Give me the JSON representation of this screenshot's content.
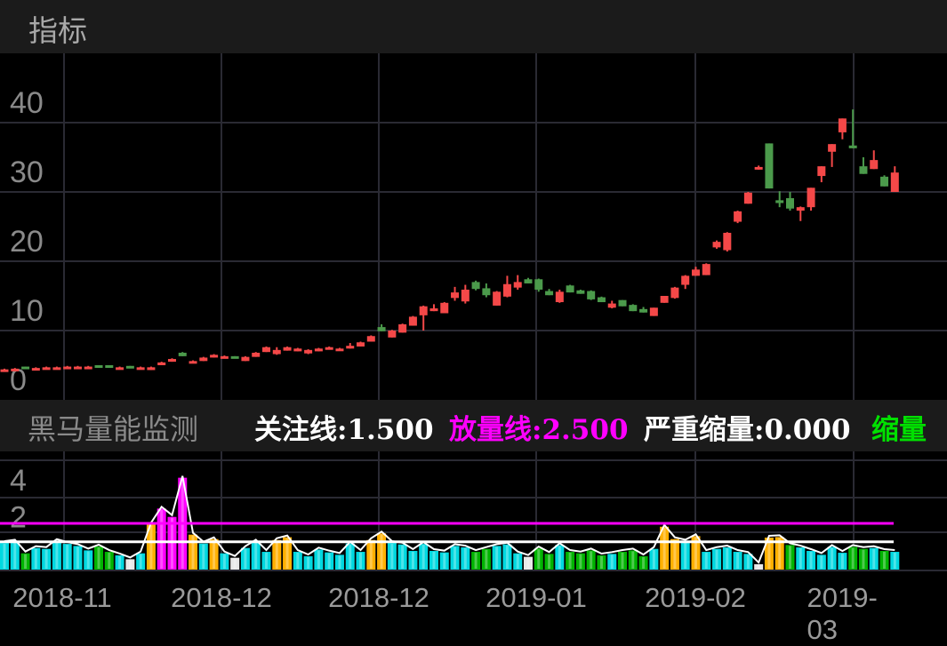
{
  "header": {
    "title": "指标"
  },
  "indicator": {
    "name": "黑马量能监测",
    "items": [
      {
        "label": "关注线:1.500",
        "color": "#ffffff"
      },
      {
        "label": "放量线:2.500",
        "color": "#ff00ff"
      },
      {
        "label": "严重缩量:0.000",
        "color": "#ffffff"
      },
      {
        "label": "缩量",
        "color": "#00e000"
      }
    ]
  },
  "chart_data": [
    {
      "type": "candlestick",
      "ylim": [
        0,
        50
      ],
      "yticks": [
        "0",
        "10",
        "20",
        "30",
        "40"
      ],
      "ytick_values": [
        0,
        10,
        20,
        30,
        40
      ],
      "grid": true,
      "colors": {
        "up": "#f44848",
        "down": "#4b9a4b"
      },
      "ohlc": [
        [
          4.2,
          4.5,
          4.2,
          4.4
        ],
        [
          4.3,
          4.6,
          4.3,
          4.5
        ],
        [
          4.8,
          4.8,
          4.6,
          4.6
        ],
        [
          4.4,
          4.7,
          4.4,
          4.6
        ],
        [
          4.5,
          4.8,
          4.5,
          4.7
        ],
        [
          4.5,
          4.8,
          4.5,
          4.7
        ],
        [
          4.6,
          4.9,
          4.6,
          4.8
        ],
        [
          4.6,
          4.9,
          4.6,
          4.8
        ],
        [
          4.6,
          4.9,
          4.6,
          4.8
        ],
        [
          5.0,
          5.0,
          4.8,
          4.8
        ],
        [
          5.0,
          5.0,
          4.8,
          4.8
        ],
        [
          4.5,
          4.8,
          4.5,
          4.7
        ],
        [
          4.9,
          4.9,
          4.6,
          4.6
        ],
        [
          4.5,
          4.8,
          4.5,
          4.7
        ],
        [
          4.3,
          4.8,
          4.3,
          4.7
        ],
        [
          5.0,
          5.5,
          5.0,
          5.4
        ],
        [
          5.5,
          6.0,
          5.5,
          5.9
        ],
        [
          6.8,
          6.9,
          6.3,
          6.3
        ],
        [
          5.3,
          5.7,
          5.3,
          5.6
        ],
        [
          5.6,
          6.2,
          5.6,
          6.1
        ],
        [
          6.1,
          6.6,
          6.1,
          6.5
        ],
        [
          6.0,
          6.4,
          6.0,
          6.3
        ],
        [
          6.3,
          6.3,
          6.0,
          6.0
        ],
        [
          5.6,
          6.3,
          5.6,
          6.2
        ],
        [
          6.2,
          6.9,
          6.2,
          6.8
        ],
        [
          6.9,
          7.7,
          6.9,
          7.6
        ],
        [
          6.6,
          7.6,
          6.5,
          7.2
        ],
        [
          7.1,
          7.7,
          7.1,
          7.6
        ],
        [
          7.0,
          7.5,
          7.0,
          7.4
        ],
        [
          6.7,
          7.3,
          6.6,
          7.2
        ],
        [
          7.0,
          7.5,
          7.0,
          7.4
        ],
        [
          7.3,
          7.7,
          7.3,
          7.6
        ],
        [
          7.1,
          7.5,
          7.1,
          7.4
        ],
        [
          7.4,
          8.2,
          7.4,
          7.8
        ],
        [
          7.7,
          8.4,
          7.7,
          8.3
        ],
        [
          8.4,
          9.3,
          8.4,
          9.2
        ],
        [
          10.5,
          10.9,
          9.9,
          9.9
        ],
        [
          9.0,
          10.1,
          9.0,
          10.0
        ],
        [
          9.7,
          11.0,
          9.7,
          10.9
        ],
        [
          10.7,
          12.1,
          10.7,
          12.0
        ],
        [
          12.2,
          13.6,
          10.0,
          13.5
        ],
        [
          12.8,
          13.8,
          12.8,
          13.2
        ],
        [
          12.5,
          14.1,
          12.5,
          14.0
        ],
        [
          14.7,
          16.3,
          14.3,
          15.5
        ],
        [
          14.2,
          16.6,
          13.9,
          15.9
        ],
        [
          17.0,
          17.2,
          15.8,
          16.0
        ],
        [
          16.1,
          16.8,
          14.8,
          15.1
        ],
        [
          13.6,
          15.7,
          13.6,
          15.6
        ],
        [
          14.9,
          17.9,
          14.8,
          16.7
        ],
        [
          16.2,
          18.0,
          15.9,
          17.0
        ],
        [
          17.4,
          17.6,
          16.8,
          16.8
        ],
        [
          17.4,
          17.5,
          15.6,
          15.9
        ],
        [
          15.7,
          16.0,
          15.1,
          15.1
        ],
        [
          14.1,
          15.9,
          14.0,
          15.6
        ],
        [
          16.5,
          16.6,
          15.5,
          15.5
        ],
        [
          15.8,
          15.9,
          15.3,
          15.3
        ],
        [
          15.7,
          15.8,
          14.4,
          14.5
        ],
        [
          14.8,
          14.9,
          14.1,
          14.1
        ],
        [
          13.3,
          14.3,
          13.2,
          13.9
        ],
        [
          14.4,
          14.4,
          13.5,
          13.5
        ],
        [
          13.7,
          13.8,
          12.8,
          12.8
        ],
        [
          13.1,
          13.4,
          12.6,
          12.6
        ],
        [
          12.1,
          13.3,
          12.1,
          13.3
        ],
        [
          14.0,
          15.0,
          14.0,
          15.0
        ],
        [
          14.7,
          16.3,
          14.6,
          16.2
        ],
        [
          16.6,
          18.0,
          16.0,
          17.9
        ],
        [
          17.9,
          19.2,
          17.9,
          18.8
        ],
        [
          18.0,
          19.7,
          18.0,
          19.6
        ],
        [
          22.0,
          23.0,
          21.8,
          22.8
        ],
        [
          21.6,
          24.2,
          21.4,
          24.1
        ],
        [
          25.7,
          27.3,
          25.5,
          27.2
        ],
        [
          28.3,
          30.0,
          28.3,
          29.9
        ],
        [
          33.3,
          33.8,
          33.2,
          33.6
        ],
        [
          37.0,
          37.0,
          30.5,
          30.5
        ],
        [
          28.8,
          30.1,
          27.8,
          28.4
        ],
        [
          29.1,
          30.0,
          27.3,
          27.6
        ],
        [
          27.3,
          27.9,
          25.8,
          27.8
        ],
        [
          27.8,
          30.6,
          27.3,
          30.6
        ],
        [
          32.3,
          33.7,
          31.4,
          33.7
        ],
        [
          35.8,
          36.9,
          33.6,
          36.9
        ],
        [
          38.6,
          40.6,
          37.6,
          40.6
        ],
        [
          36.7,
          41.9,
          36.3,
          36.3
        ],
        [
          33.7,
          35.0,
          32.6,
          32.6
        ],
        [
          33.3,
          36.0,
          33.3,
          34.6
        ],
        [
          32.2,
          32.4,
          30.8,
          30.8
        ],
        [
          30.0,
          33.7,
          30.0,
          32.8
        ]
      ],
      "xticks": [
        "2018-11",
        "2018-12",
        "2018-12",
        "2019-01",
        "2019-02",
        "2019-03"
      ]
    },
    {
      "type": "bar",
      "title": "黑马量能监测",
      "ylim": [
        0,
        5.8
      ],
      "yticks": [
        "2",
        "4"
      ],
      "ytick_values": [
        2,
        4
      ],
      "reference_lines": [
        {
          "value": 1.5,
          "color": "#ffffff"
        },
        {
          "value": 2.5,
          "color": "#ff00ff"
        }
      ],
      "colors": {
        "magenta": "#ff00ff",
        "orange": "#ffb000",
        "cyan": "#00d8e0",
        "green": "#00b400",
        "white": "#e8e8e8",
        "line": "#ffffff"
      },
      "values": [
        1.44,
        1.52,
        0.88,
        1.17,
        1.12,
        1.55,
        1.39,
        1.28,
        1.04,
        1.25,
        0.96,
        0.77,
        0.56,
        0.88,
        2.44,
        3.3,
        2.85,
        4.97,
        1.89,
        1.41,
        1.65,
        0.88,
        0.64,
        1.17,
        1.52,
        0.96,
        1.6,
        1.75,
        0.96,
        0.72,
        1.09,
        0.93,
        0.8,
        1.41,
        0.96,
        1.6,
        1.96,
        1.44,
        1.36,
        1.01,
        1.39,
        1.01,
        0.93,
        1.28,
        1.2,
        0.96,
        1.12,
        1.28,
        1.36,
        0.88,
        0.69,
        1.15,
        0.85,
        1.33,
        0.96,
        0.88,
        1.04,
        0.77,
        0.85,
        0.96,
        1.04,
        0.72,
        1.12,
        2.32,
        1.65,
        1.52,
        1.81,
        0.96,
        1.12,
        1.2,
        0.96,
        0.85,
        0.29,
        1.73,
        1.76,
        1.33,
        1.2,
        1.01,
        0.8,
        1.23,
        0.91,
        1.23,
        1.12,
        1.17,
        1.01,
        0.96
      ]
    }
  ]
}
